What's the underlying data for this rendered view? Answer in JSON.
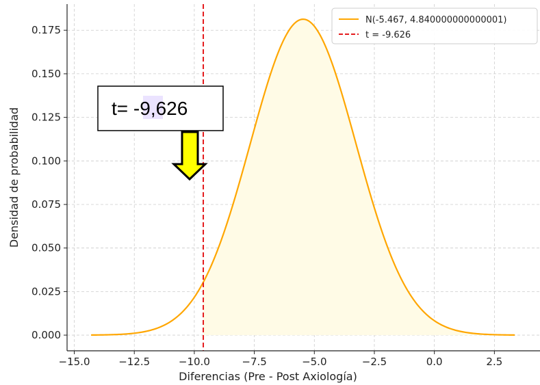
{
  "chart_data": {
    "type": "line",
    "title": "",
    "xlabel": "Diferencias (Pre - Post Axiología)",
    "ylabel": "Densidad de probabilidad",
    "xlim": [
      -15.3,
      4.4
    ],
    "ylim": [
      -0.009,
      0.19
    ],
    "xticks": [
      -15.0,
      -12.5,
      -10.0,
      -7.5,
      -5.0,
      -2.5,
      0.0,
      2.5
    ],
    "xtick_labels": [
      "−15.0",
      "−12.5",
      "−10.0",
      "−7.5",
      "−5.0",
      "−2.5",
      "0.0",
      "2.5"
    ],
    "yticks": [
      0.0,
      0.025,
      0.05,
      0.075,
      0.1,
      0.125,
      0.15,
      0.175
    ],
    "ytick_labels": [
      "0.000",
      "0.025",
      "0.050",
      "0.075",
      "0.100",
      "0.125",
      "0.150",
      "0.175"
    ],
    "grid": true,
    "legend_position": "top-right",
    "series": [
      {
        "name": "N(-5.467, 4.840000000000001)",
        "kind": "normal-pdf",
        "mean": -5.467,
        "variance": 4.84,
        "x_range": [
          -14.3,
          3.35
        ],
        "color": "#ffa600",
        "fill_color": "#fffbe6"
      }
    ],
    "vlines": [
      {
        "name": "t = -9.626",
        "x": -9.626,
        "color": "#e41a1c",
        "style": "dashed"
      }
    ],
    "annotation": {
      "text_prefix": "t= ",
      "text_highlight": "-9,",
      "text_suffix": "626",
      "highlight_color": "#ebe3ff",
      "arrow_color": "#ffff00"
    }
  }
}
